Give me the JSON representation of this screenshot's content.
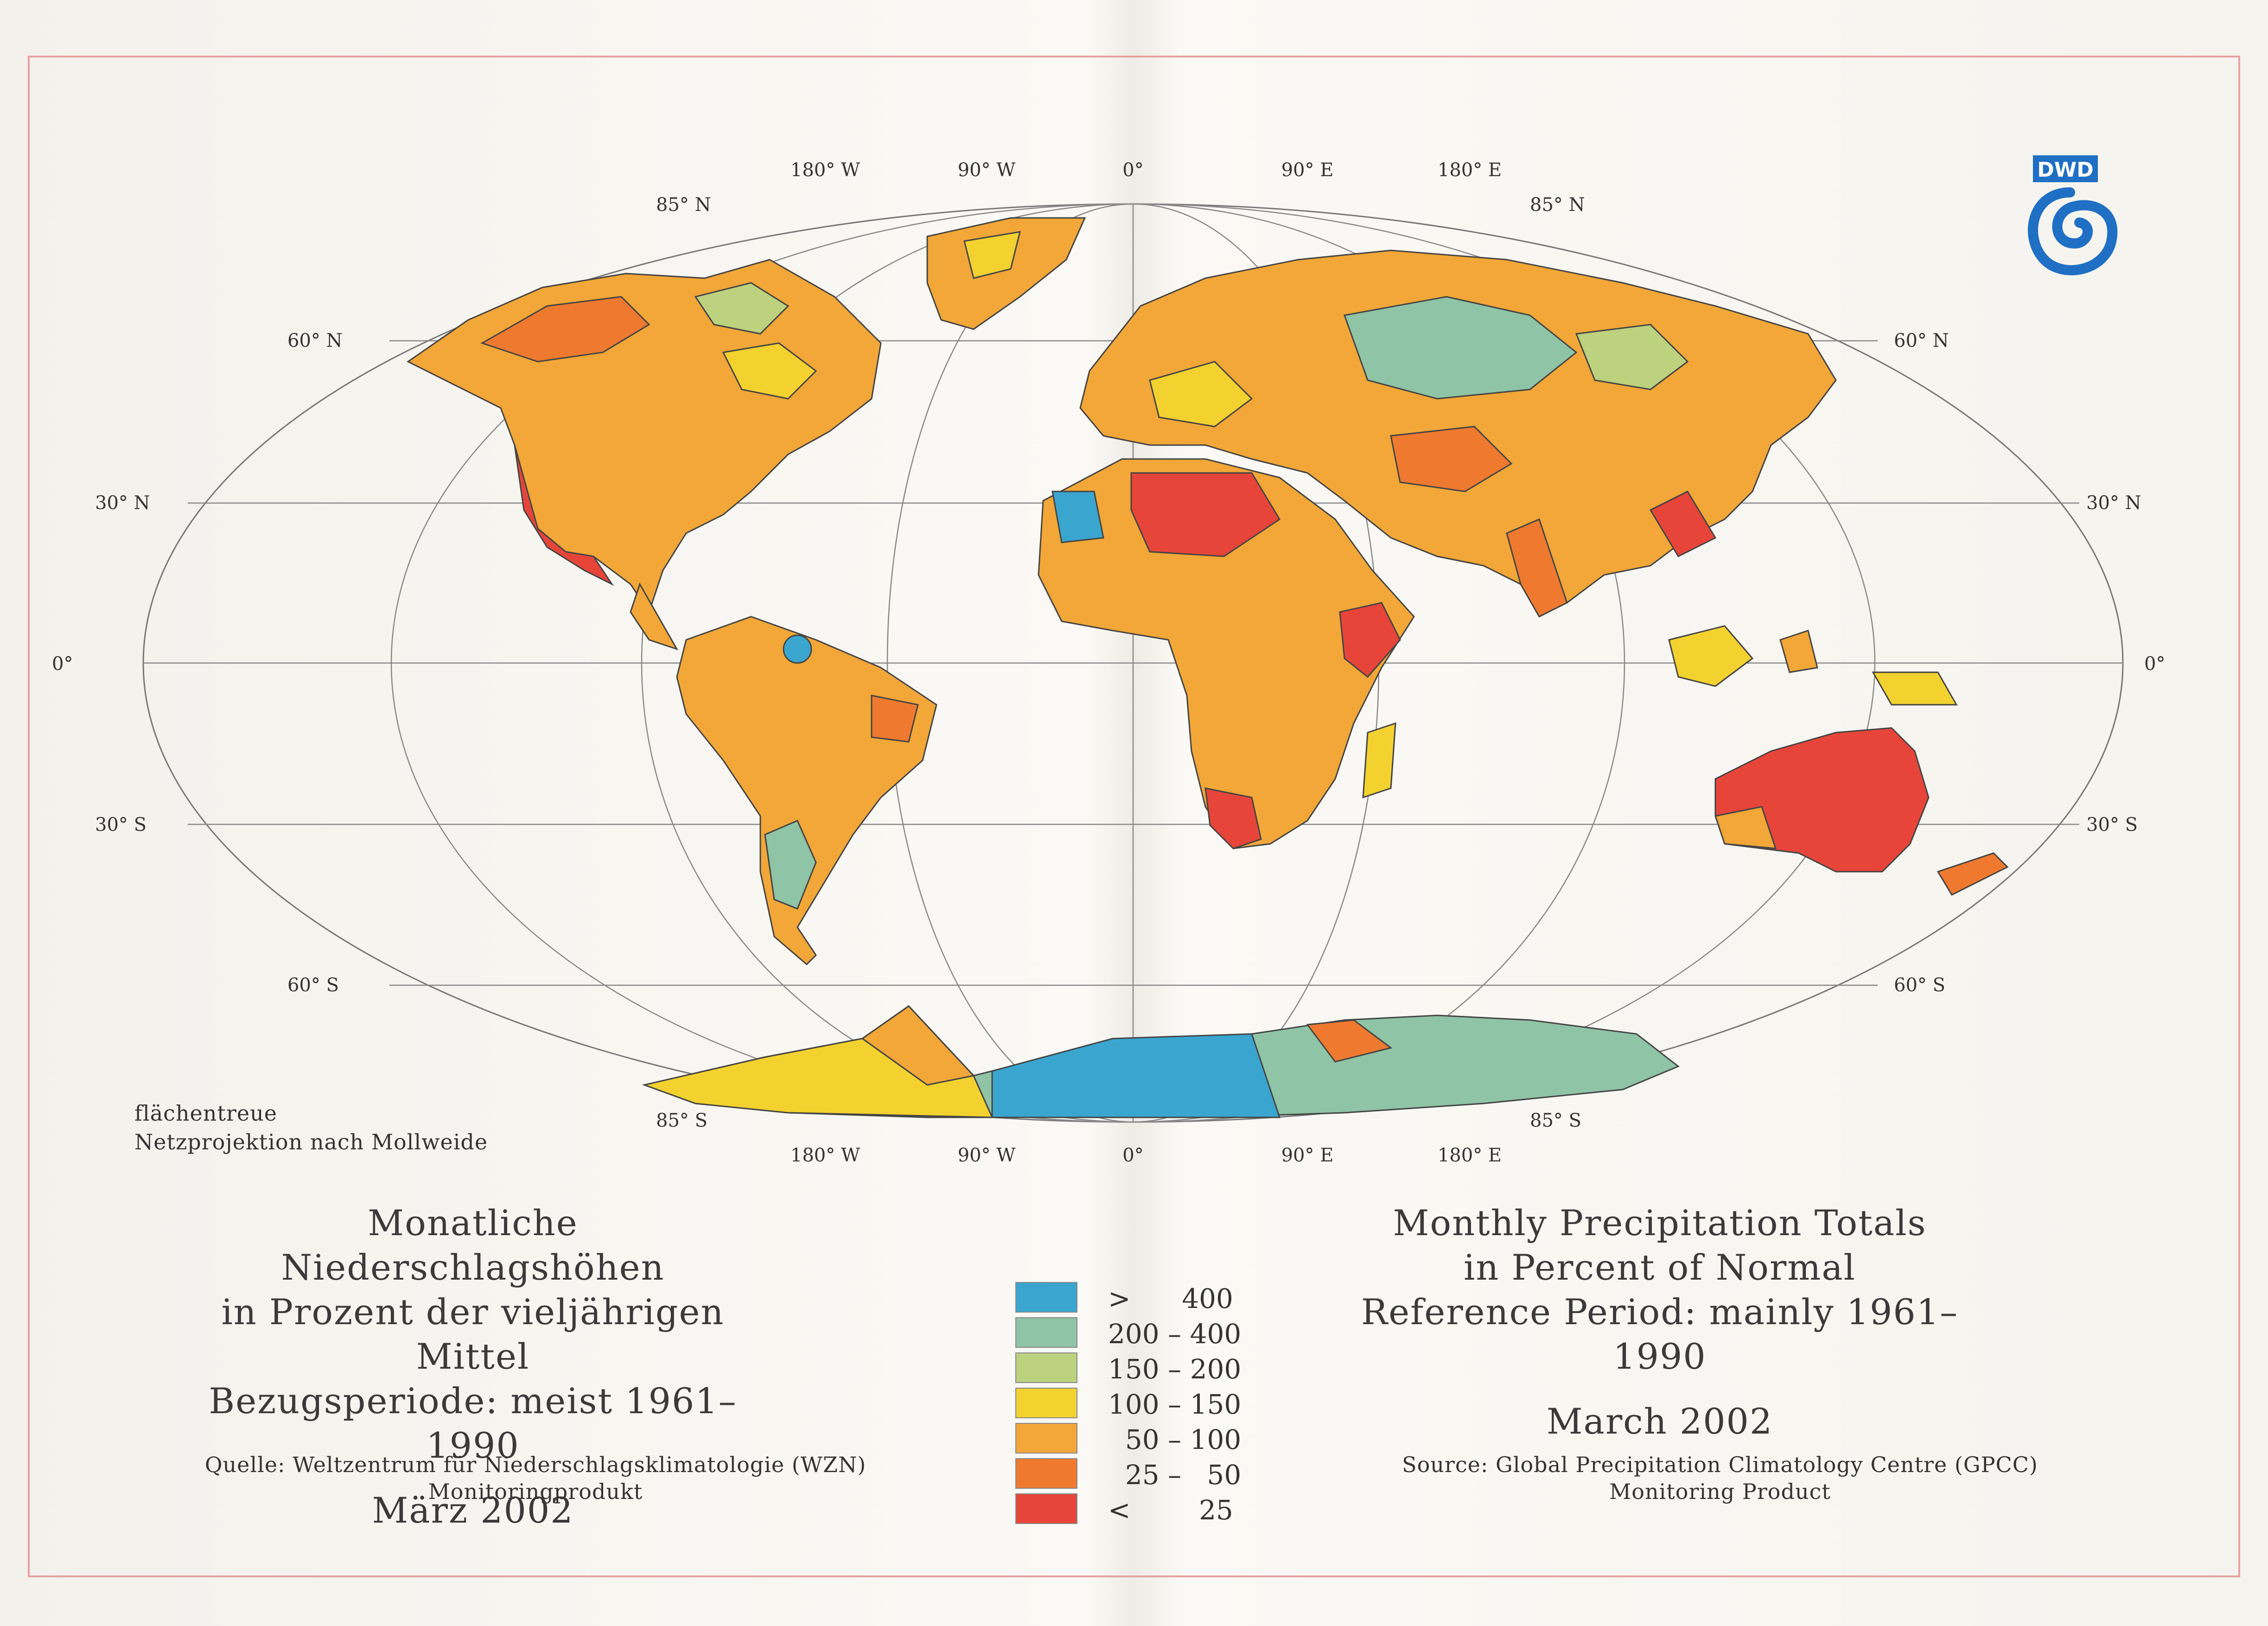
{
  "map": {
    "longitude_labels": [
      "180° W",
      "90° W",
      "0°",
      "90° E",
      "180° E"
    ],
    "latitude_labels": {
      "n85": "85° N",
      "n60": "60° N",
      "n30": "30° N",
      "eq": "0°",
      "s30": "30° S",
      "s60": "60° S",
      "s85": "85° S"
    },
    "projection_note": [
      "flächentreue",
      "Netzprojektion nach Mollweide"
    ]
  },
  "logo": {
    "text": "DWD",
    "color": "#1f6fc4"
  },
  "title_de": {
    "lines": [
      "Monatliche Niederschlagshöhen",
      "in Prozent der vieljährigen Mittel",
      "Bezugsperiode: meist 1961–1990"
    ],
    "month": "März 2002"
  },
  "title_en": {
    "lines": [
      "Monthly Precipitation Totals",
      "in Percent of Normal",
      "Reference Period: mainly 1961–1990"
    ],
    "month": "March 2002"
  },
  "source_de": [
    "Quelle: Weltzentrum für Niederschlagsklimatologie (WZN)",
    "Monitoringprodukt"
  ],
  "source_en": [
    "Source: Global Precipitation Climatology Centre (GPCC)",
    "Monitoring Product"
  ],
  "legend": [
    {
      "label": ">      400",
      "color": "#3aa6cf"
    },
    {
      "label": "200 – 400",
      "color": "#8fc4a6"
    },
    {
      "label": "150 – 200",
      "color": "#bcd27e"
    },
    {
      "label": "100 – 150",
      "color": "#f3d230"
    },
    {
      "label": "  50 – 100",
      "color": "#f2a738"
    },
    {
      "label": "  25 –   50",
      "color": "#ef7a2f"
    },
    {
      "label": "<        25",
      "color": "#e8453a"
    }
  ]
}
